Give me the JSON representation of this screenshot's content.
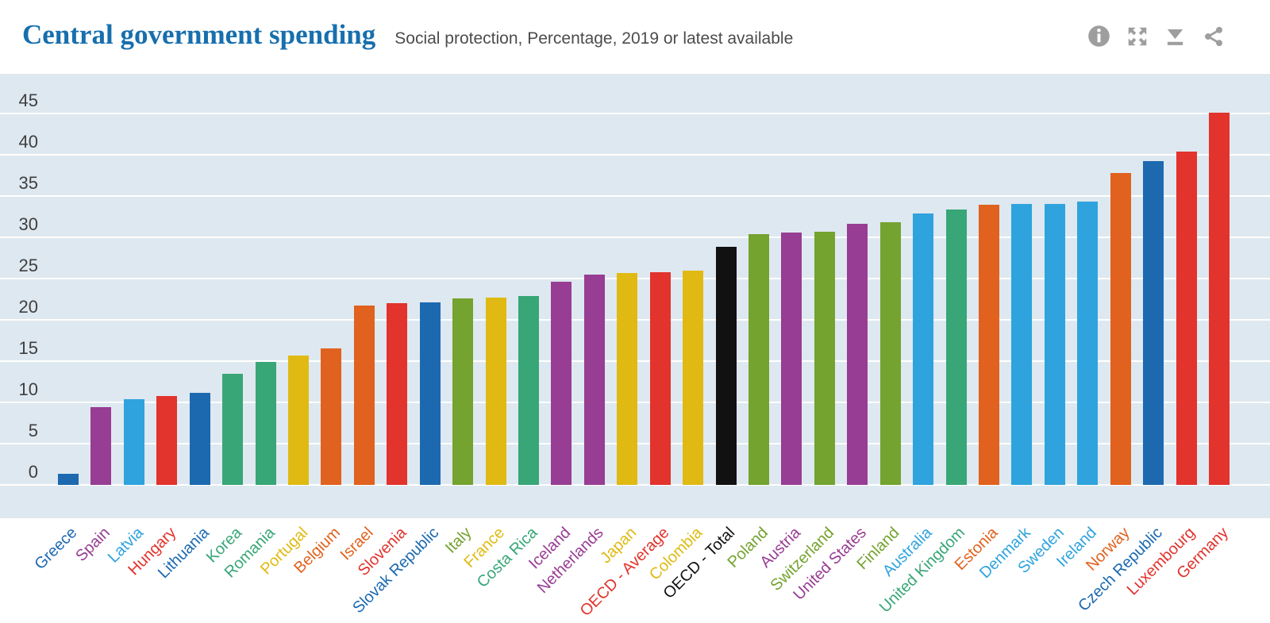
{
  "header": {
    "title": "Central government spending",
    "subtitle": "Social protection, Percentage, 2019 or latest available",
    "toolbar": {
      "color": "#9e9e9e",
      "icons": [
        "info",
        "fullscreen",
        "download",
        "share"
      ]
    }
  },
  "chart_data": {
    "type": "bar",
    "title": "Central government spending",
    "subtitle": "Social protection, Percentage, 2019 or latest available",
    "xlabel": "",
    "ylabel": "Percentage",
    "ylim": [
      0,
      49.8
    ],
    "yticks": [
      0,
      5,
      10,
      15,
      20,
      25,
      30,
      35,
      40,
      45
    ],
    "grid": "horizontal-white-lines",
    "legend": "none",
    "plot_background": "#dee8f0",
    "categories": [
      "Greece",
      "Spain",
      "Latvia",
      "Hungary",
      "Lithuania",
      "Korea",
      "Romania",
      "Portugal",
      "Belgium",
      "Israel",
      "Slovenia",
      "Slovak Republic",
      "Italy",
      "France",
      "Costa Rica",
      "Iceland",
      "Netherlands",
      "Japan",
      "OECD - Average",
      "Colombia",
      "OECD - Total",
      "Poland",
      "Austria",
      "Switzerland",
      "United States",
      "Finland",
      "Australia",
      "United Kingdom",
      "Estonia",
      "Denmark",
      "Sweden",
      "Ireland",
      "Norway",
      "Czech Republic",
      "Luxembourg",
      "Germany"
    ],
    "values": [
      1.3,
      9.4,
      10.4,
      10.8,
      11.2,
      13.5,
      14.9,
      15.7,
      16.5,
      21.7,
      22.0,
      22.1,
      22.6,
      22.7,
      22.9,
      24.6,
      25.5,
      25.7,
      25.8,
      26.0,
      28.8,
      30.4,
      30.6,
      30.7,
      31.6,
      31.8,
      32.9,
      33.4,
      33.9,
      34.0,
      34.0,
      34.3,
      37.8,
      39.2,
      40.4,
      45.1
    ],
    "color_keys": [
      "darkblue",
      "purple",
      "lightblue",
      "red",
      "darkblue",
      "green",
      "green",
      "yellow",
      "orange",
      "orange",
      "red",
      "darkblue",
      "olive",
      "yellow",
      "green",
      "purple",
      "purple",
      "yellow",
      "red",
      "yellow",
      "black",
      "olive",
      "purple",
      "olive",
      "purple",
      "olive",
      "lightblue",
      "green",
      "orange",
      "lightblue",
      "lightblue",
      "lightblue",
      "orange",
      "darkblue",
      "red",
      "red"
    ],
    "palette": {
      "darkblue": "#1c69b0",
      "purple": "#973d93",
      "lightblue": "#2fa3dd",
      "red": "#e2332d",
      "green": "#38a677",
      "yellow": "#e0ba12",
      "orange": "#e0621e",
      "olive": "#74a32f",
      "black": "#111111"
    }
  }
}
